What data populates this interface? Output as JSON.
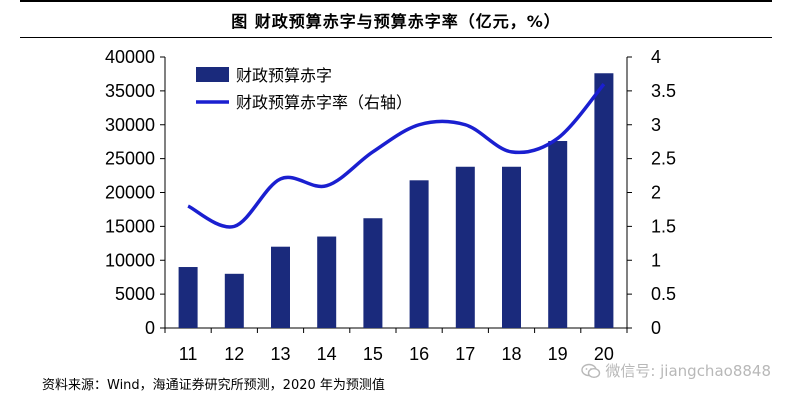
{
  "chart_data": {
    "type": "bar",
    "title": "图  财政预算赤字与预算赤字率（亿元，%）",
    "categories": [
      "11",
      "12",
      "13",
      "14",
      "15",
      "16",
      "17",
      "18",
      "19",
      "20"
    ],
    "series": [
      {
        "name": "财政预算赤字",
        "type": "bar",
        "axis": "left",
        "color": "#1a2a7c",
        "values": [
          9000,
          8000,
          12000,
          13500,
          16200,
          21800,
          23800,
          23800,
          27600,
          37600
        ]
      },
      {
        "name": "财政预算赤字率（右轴）",
        "type": "line",
        "axis": "right",
        "color": "#1a1fd0",
        "values": [
          1.8,
          1.5,
          2.2,
          2.1,
          2.6,
          3.0,
          3.0,
          2.6,
          2.8,
          3.6
        ]
      }
    ],
    "left_axis": {
      "ylim": [
        0,
        40000
      ],
      "ticks": [
        "0",
        "5000",
        "10000",
        "15000",
        "20000",
        "25000",
        "30000",
        "35000",
        "40000"
      ]
    },
    "right_axis": {
      "ylim": [
        0,
        4
      ],
      "ticks": [
        "0",
        "0.5",
        "1",
        "1.5",
        "2",
        "2.5",
        "3",
        "3.5",
        "4"
      ]
    },
    "legend_position": "top-left",
    "grid": false
  },
  "footer": {
    "source": "资料来源：Wind，海通证券研究所预测，2020 年为预测值"
  },
  "watermark": {
    "text": "微信号: jiangchao8848"
  }
}
